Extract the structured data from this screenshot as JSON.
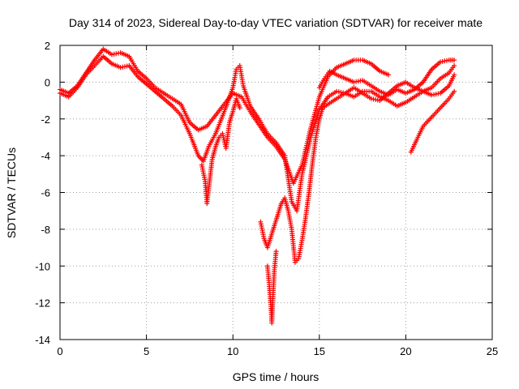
{
  "chart_data": {
    "type": "scatter",
    "title": "Day 314 of 2023, Sidereal Day-to-day VTEC variation (SDTVAR) for receiver mate",
    "xlabel": "GPS time / hours",
    "ylabel": "SDTVAR / TECUs",
    "xlim": [
      0,
      25
    ],
    "ylim": [
      -14,
      2
    ],
    "xticks": [
      0,
      5,
      10,
      15,
      20,
      25
    ],
    "yticks": [
      2,
      0,
      -2,
      -4,
      -6,
      -8,
      -10,
      -12,
      -14
    ],
    "grid": true,
    "marker": "+",
    "color": "#ff0000",
    "series": [
      {
        "segments": [
          [
            [
              0,
              -0.4
            ],
            [
              0.5,
              -0.6
            ],
            [
              1,
              -0.2
            ],
            [
              1.5,
              0.5
            ],
            [
              2,
              1.2
            ],
            [
              2.5,
              1.8
            ],
            [
              3,
              1.5
            ],
            [
              3.5,
              1.6
            ],
            [
              4,
              1.4
            ],
            [
              4.5,
              0.6
            ],
            [
              5,
              0.2
            ],
            [
              5.5,
              -0.3
            ],
            [
              6,
              -0.6
            ],
            [
              6.5,
              -0.9
            ],
            [
              7,
              -1.2
            ],
            [
              7.5,
              -2.2
            ],
            [
              8,
              -2.6
            ],
            [
              8.5,
              -2.4
            ],
            [
              9,
              -1.8
            ],
            [
              9.5,
              -1.2
            ],
            [
              10,
              -0.6
            ],
            [
              10.5,
              -0.8
            ],
            [
              11,
              -1.6
            ],
            [
              11.5,
              -2.3
            ],
            [
              12,
              -3.0
            ],
            [
              12.5,
              -3.5
            ],
            [
              13,
              -4.2
            ],
            [
              13.5,
              -5.5
            ],
            [
              14,
              -4.5
            ],
            [
              14.5,
              -2.5
            ],
            [
              15,
              -0.8
            ],
            [
              15.5,
              0.3
            ],
            [
              16,
              0.8
            ],
            [
              16.5,
              1.0
            ],
            [
              17,
              1.2
            ],
            [
              17.5,
              1.2
            ],
            [
              18,
              1.0
            ],
            [
              18.5,
              0.6
            ],
            [
              19,
              0.4
            ]
          ]
        ]
      },
      {
        "segments": [
          [
            [
              0,
              -0.6
            ],
            [
              0.5,
              -0.8
            ],
            [
              1,
              -0.3
            ],
            [
              1.5,
              0.4
            ],
            [
              2,
              0.9
            ],
            [
              2.5,
              1.4
            ],
            [
              3,
              1.0
            ],
            [
              3.5,
              0.8
            ],
            [
              4,
              0.9
            ],
            [
              4.5,
              0.3
            ],
            [
              5,
              -0.1
            ],
            [
              5.5,
              -0.5
            ],
            [
              6,
              -0.9
            ],
            [
              6.5,
              -1.3
            ],
            [
              7,
              -1.8
            ],
            [
              7.5,
              -2.8
            ],
            [
              8,
              -4.0
            ],
            [
              8.3,
              -4.3
            ],
            [
              8.6,
              -3.5
            ],
            [
              9,
              -2.8
            ],
            [
              9.5,
              -1.6
            ],
            [
              10,
              -0.3
            ],
            [
              10.2,
              0.7
            ],
            [
              10.4,
              0.9
            ],
            [
              10.6,
              -0.2
            ],
            [
              11,
              -1.3
            ],
            [
              11.5,
              -2.0
            ],
            [
              12,
              -2.8
            ],
            [
              12.5,
              -3.3
            ],
            [
              13,
              -4.0
            ],
            [
              13.4,
              -6.5
            ],
            [
              13.7,
              -7.0
            ],
            [
              14,
              -5.0
            ],
            [
              14.5,
              -3.0
            ],
            [
              15,
              -1.5
            ],
            [
              15.5,
              -0.8
            ],
            [
              16,
              -0.5
            ],
            [
              16.5,
              -0.6
            ],
            [
              17,
              -0.8
            ],
            [
              17.5,
              -0.5
            ],
            [
              18,
              -0.5
            ],
            [
              18.5,
              -0.8
            ],
            [
              19,
              -1.0
            ],
            [
              19.5,
              -1.3
            ],
            [
              20,
              -1.1
            ],
            [
              20.5,
              -0.8
            ],
            [
              21,
              -0.5
            ],
            [
              21.5,
              -0.7
            ],
            [
              22,
              -0.6
            ],
            [
              22.5,
              -0.2
            ],
            [
              22.8,
              0.4
            ]
          ]
        ]
      },
      {
        "segments": [
          [
            [
              8.2,
              -4.5
            ],
            [
              8.4,
              -5.4
            ],
            [
              8.5,
              -6.6
            ],
            [
              8.6,
              -5.8
            ],
            [
              8.8,
              -4.2
            ],
            [
              9,
              -3.5
            ],
            [
              9.2,
              -3.0
            ],
            [
              9.4,
              -2.8
            ],
            [
              9.6,
              -3.6
            ],
            [
              9.8,
              -2.2
            ],
            [
              10,
              -1.6
            ],
            [
              10.2,
              -0.9
            ],
            [
              10.4,
              -1.4
            ]
          ],
          [
            [
              11.6,
              -7.6
            ],
            [
              11.8,
              -8.5
            ],
            [
              12,
              -9.0
            ],
            [
              12.2,
              -8.4
            ],
            [
              12.4,
              -7.8
            ],
            [
              12.6,
              -7.2
            ],
            [
              12.8,
              -6.6
            ],
            [
              13,
              -6.3
            ],
            [
              13.2,
              -7.0
            ],
            [
              13.4,
              -8.0
            ],
            [
              13.6,
              -9.8
            ],
            [
              13.8,
              -9.6
            ],
            [
              14,
              -8.6
            ],
            [
              14.2,
              -7.4
            ],
            [
              14.4,
              -6.0
            ],
            [
              14.6,
              -4.4
            ],
            [
              14.8,
              -3.0
            ],
            [
              15,
              -2.0
            ],
            [
              15.2,
              -1.4
            ],
            [
              15.5,
              -1.2
            ],
            [
              16,
              -0.9
            ],
            [
              16.5,
              -0.6
            ],
            [
              17,
              -0.3
            ],
            [
              17.5,
              -0.6
            ],
            [
              18,
              -0.9
            ],
            [
              18.5,
              -1.0
            ],
            [
              19,
              -0.6
            ],
            [
              19.5,
              -0.2
            ],
            [
              20,
              0.0
            ],
            [
              20.5,
              -0.3
            ],
            [
              21,
              -0.5
            ],
            [
              21.5,
              -0.3
            ],
            [
              22,
              0.2
            ],
            [
              22.5,
              0.5
            ],
            [
              22.8,
              0.9
            ]
          ],
          [
            [
              12,
              -10.0
            ],
            [
              12.1,
              -11.0
            ],
            [
              12.2,
              -12.2
            ],
            [
              12.25,
              -13.1
            ],
            [
              12.3,
              -12.0
            ],
            [
              12.4,
              -10.2
            ],
            [
              12.5,
              -9.2
            ]
          ]
        ]
      },
      {
        "segments": [
          [
            [
              20.3,
              -3.8
            ],
            [
              20.6,
              -3.2
            ],
            [
              21,
              -2.4
            ],
            [
              21.5,
              -1.9
            ],
            [
              22,
              -1.4
            ],
            [
              22.5,
              -0.9
            ],
            [
              22.8,
              -0.5
            ]
          ],
          [
            [
              15,
              -0.3
            ],
            [
              15.3,
              0.2
            ],
            [
              15.6,
              0.6
            ],
            [
              16,
              0.4
            ],
            [
              16.5,
              0.2
            ],
            [
              17,
              0.0
            ],
            [
              17.5,
              0.1
            ],
            [
              18,
              -0.2
            ],
            [
              18.5,
              -0.5
            ],
            [
              19,
              -0.7
            ],
            [
              19.5,
              -0.4
            ],
            [
              20,
              -0.6
            ],
            [
              20.5,
              -0.4
            ],
            [
              21,
              0.0
            ],
            [
              21.5,
              0.7
            ],
            [
              22,
              1.1
            ],
            [
              22.5,
              1.2
            ],
            [
              22.8,
              1.2
            ]
          ]
        ]
      }
    ]
  }
}
